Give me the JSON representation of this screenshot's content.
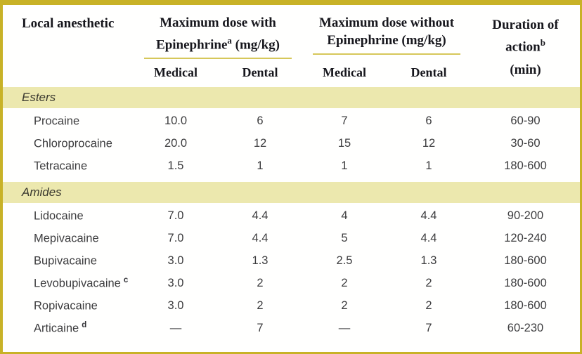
{
  "colors": {
    "border_gold": "#c8b227",
    "section_band": "#ece8ae",
    "header_rule": "#d6c75a",
    "header_text": "#17171d",
    "body_text": "#3c3c3e"
  },
  "header": {
    "local_anesthetic": "Local anesthetic",
    "with_epi": {
      "line1": "Maximum dose with",
      "line2_pre": "Epinephrine",
      "sup": "a",
      "line2_post": "(mg/kg)"
    },
    "without_epi": {
      "line1": "Maximum dose without",
      "line2": "Epinephrine (mg/kg)"
    },
    "duration": {
      "line1": "Duration of",
      "line2_pre": "action",
      "sup": "b",
      "line3": "(min)"
    },
    "sub": {
      "medical": "Medical",
      "dental": "Dental"
    }
  },
  "sections": [
    {
      "label": "Esters",
      "rows": [
        {
          "name": "Procaine",
          "values": [
            "10.0",
            "6",
            "7",
            "6",
            "60-90"
          ]
        },
        {
          "name": "Chloroprocaine",
          "values": [
            "20.0",
            "12",
            "15",
            "12",
            "30-60"
          ]
        },
        {
          "name": "Tetracaine",
          "values": [
            "1.5",
            "1",
            "1",
            "1",
            "180-600"
          ]
        }
      ]
    },
    {
      "label": "Amides",
      "rows": [
        {
          "name": "Lidocaine",
          "values": [
            "7.0",
            "4.4",
            "4",
            "4.4",
            "90-200"
          ]
        },
        {
          "name": "Mepivacaine",
          "values": [
            "7.0",
            "4.4",
            "5",
            "4.4",
            "120-240"
          ]
        },
        {
          "name": "Bupivacaine",
          "values": [
            "3.0",
            "1.3",
            "2.5",
            "1.3",
            "180-600"
          ]
        },
        {
          "name": "Levobupivacaine",
          "sup": "c",
          "values": [
            "3.0",
            "2",
            "2",
            "2",
            "180-600"
          ]
        },
        {
          "name": "Ropivacaine",
          "values": [
            "3.0",
            "2",
            "2",
            "2",
            "180-600"
          ]
        },
        {
          "name": "Articaine",
          "sup": "d",
          "values": [
            "—",
            "7",
            "—",
            "7",
            "60-230"
          ]
        }
      ]
    }
  ]
}
